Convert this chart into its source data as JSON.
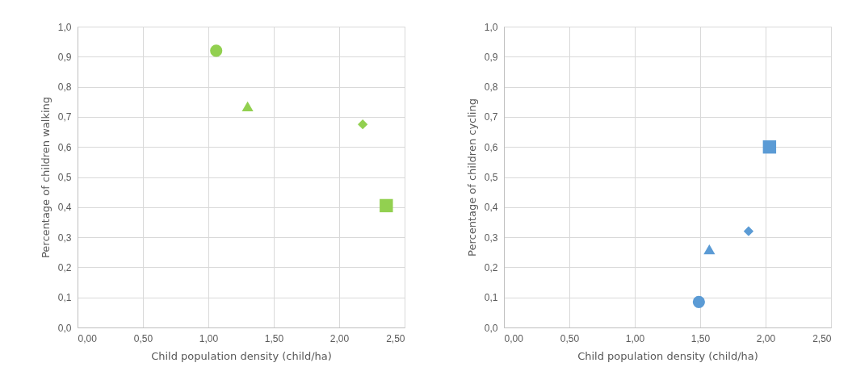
{
  "chart_data": [
    {
      "type": "scatter",
      "xlabel": "Child population density (child/ha)",
      "ylabel": "Percentage of children walking",
      "xlim": [
        0,
        2.5
      ],
      "xticks": [
        {
          "value": 0,
          "label": "0,00"
        },
        {
          "value": 0.5,
          "label": "0,50"
        },
        {
          "value": 1,
          "label": "1,00"
        },
        {
          "value": 1.5,
          "label": "1,50"
        },
        {
          "value": 2,
          "label": "2,00"
        },
        {
          "value": 2.5,
          "label": "2,50"
        }
      ],
      "ylim": [
        0,
        1
      ],
      "yticks": [
        {
          "value": 0,
          "label": "0,0"
        },
        {
          "value": 0.1,
          "label": "0,1"
        },
        {
          "value": 0.2,
          "label": "0,2"
        },
        {
          "value": 0.3,
          "label": "0,3"
        },
        {
          "value": 0.4,
          "label": "0,4"
        },
        {
          "value": 0.5,
          "label": "0,5"
        },
        {
          "value": 0.6,
          "label": "0,6"
        },
        {
          "value": 0.7,
          "label": "0,7"
        },
        {
          "value": 0.8,
          "label": "0,8"
        },
        {
          "value": 0.9,
          "label": "0,9"
        },
        {
          "value": 1,
          "label": "1,0"
        }
      ],
      "grid": true,
      "series": [
        {
          "color": "#92d050",
          "marker": "circle",
          "x": [
            1.06
          ],
          "values": [
            0.92
          ]
        },
        {
          "color": "#92d050",
          "marker": "triangle",
          "x": [
            1.3
          ],
          "values": [
            0.735
          ]
        },
        {
          "color": "#92d050",
          "marker": "diamond",
          "x": [
            2.18
          ],
          "values": [
            0.675
          ]
        },
        {
          "color": "#92d050",
          "marker": "square",
          "x": [
            2.36
          ],
          "values": [
            0.405
          ]
        }
      ]
    },
    {
      "type": "scatter",
      "xlabel": "Child population density (child/ha)",
      "ylabel": "Percentage of children cycling",
      "xlim": [
        0,
        2.5
      ],
      "xticks": [
        {
          "value": 0,
          "label": "0,00"
        },
        {
          "value": 0.5,
          "label": "0,50"
        },
        {
          "value": 1,
          "label": "1,00"
        },
        {
          "value": 1.5,
          "label": "1,50"
        },
        {
          "value": 2,
          "label": "2,00"
        },
        {
          "value": 2.5,
          "label": "2,50"
        }
      ],
      "ylim": [
        0,
        1
      ],
      "yticks": [
        {
          "value": 0,
          "label": "0,0"
        },
        {
          "value": 0.1,
          "label": "0,1"
        },
        {
          "value": 0.2,
          "label": "0,2"
        },
        {
          "value": 0.3,
          "label": "0,3"
        },
        {
          "value": 0.4,
          "label": "0,4"
        },
        {
          "value": 0.5,
          "label": "0,5"
        },
        {
          "value": 0.6,
          "label": "0,6"
        },
        {
          "value": 0.7,
          "label": "0,7"
        },
        {
          "value": 0.8,
          "label": "0,8"
        },
        {
          "value": 0.9,
          "label": "0,9"
        },
        {
          "value": 1,
          "label": "1,0"
        }
      ],
      "grid": true,
      "series": [
        {
          "color": "#5b9bd5",
          "marker": "circle",
          "x": [
            1.49
          ],
          "values": [
            0.085
          ]
        },
        {
          "color": "#5b9bd5",
          "marker": "triangle",
          "x": [
            1.57
          ],
          "values": [
            0.26
          ]
        },
        {
          "color": "#5b9bd5",
          "marker": "diamond",
          "x": [
            1.87
          ],
          "values": [
            0.32
          ]
        },
        {
          "color": "#5b9bd5",
          "marker": "square",
          "x": [
            2.03
          ],
          "values": [
            0.6
          ]
        }
      ]
    }
  ]
}
